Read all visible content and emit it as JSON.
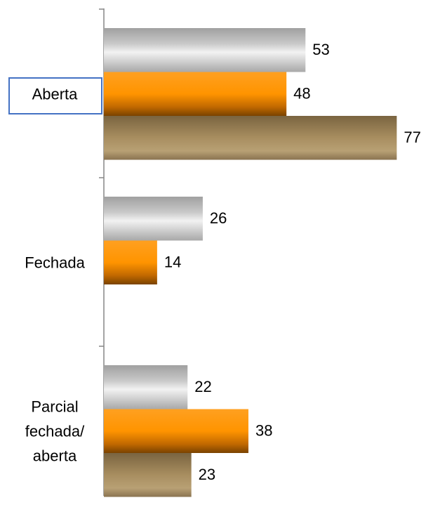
{
  "chart_data": {
    "type": "bar",
    "orientation": "horizontal",
    "categories": [
      "Aberta",
      "Fechada",
      "Parcial fechada/ aberta"
    ],
    "series": [
      {
        "color": "#c8c8c8",
        "values": [
          53,
          26,
          22
        ]
      },
      {
        "color": "#ff9400",
        "values": [
          48,
          14,
          38
        ]
      },
      {
        "color": "#a88e60",
        "values": [
          77,
          null,
          23
        ]
      }
    ]
  }
}
